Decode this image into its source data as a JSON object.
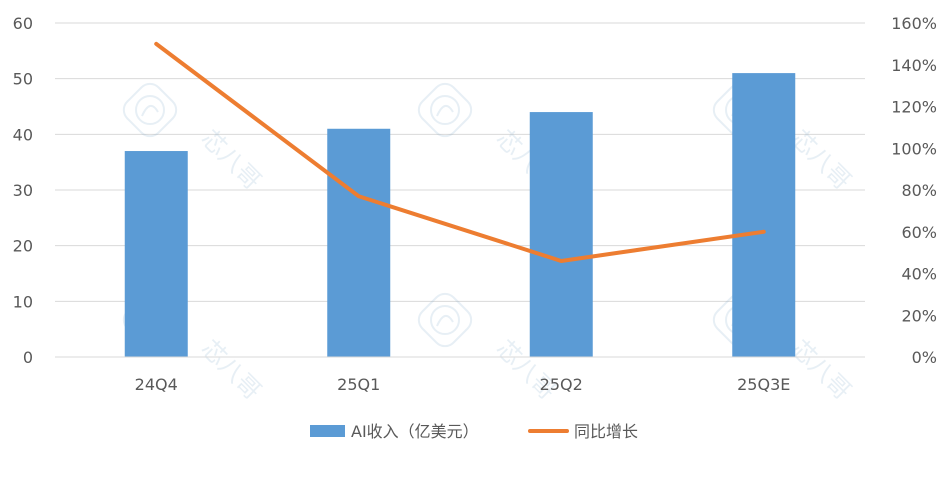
{
  "chart_data": {
    "type": "bar",
    "categories": [
      "24Q4",
      "25Q1",
      "25Q2",
      "25Q3E"
    ],
    "series": [
      {
        "name": "AI收入（亿美元）",
        "type": "bar",
        "axis": "left",
        "color": "#5B9BD5",
        "values": [
          37,
          41,
          44,
          51
        ]
      },
      {
        "name": "同比增长",
        "type": "line",
        "axis": "right",
        "color": "#ED7D31",
        "values": [
          1.5,
          0.77,
          0.46,
          0.6
        ]
      }
    ],
    "y_left": {
      "ticks": [
        0,
        10,
        20,
        30,
        40,
        50,
        60
      ],
      "ylim": [
        0,
        60
      ]
    },
    "y_right": {
      "ticks": [
        "0%",
        "20%",
        "40%",
        "60%",
        "80%",
        "100%",
        "120%",
        "140%",
        "160%"
      ],
      "ylim": [
        0,
        1.6
      ]
    },
    "grid": true,
    "legend": "bottom"
  },
  "watermark": {
    "text": "芯八哥"
  }
}
